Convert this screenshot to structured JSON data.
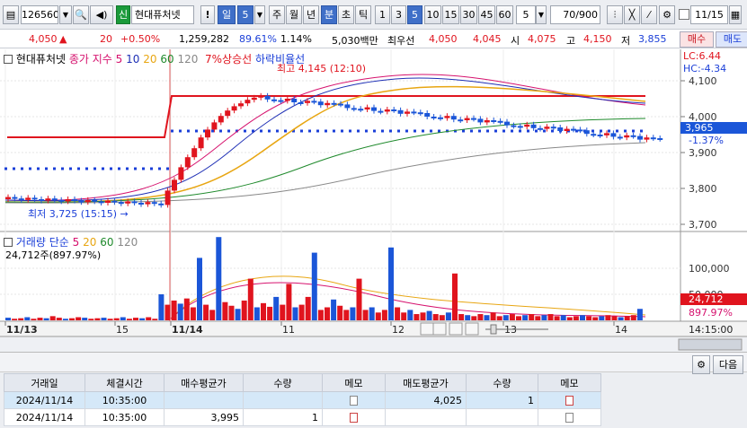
{
  "toolbar": {
    "stock_code": "126560",
    "stock_badge": "신",
    "stock_name": "현대퓨처넷",
    "alert_label": "!",
    "period_day": "일",
    "period_num": "5",
    "period_week": "주",
    "period_month": "월",
    "period_year": "년",
    "period_minute": "분",
    "period_second": "초",
    "period_tick": "틱",
    "intervals": [
      "1",
      "3",
      "5",
      "10",
      "15",
      "30",
      "45",
      "60"
    ],
    "interval_input": "5",
    "count": "70",
    "count_total": "/900",
    "date": "11/15"
  },
  "quote": {
    "price": "4,050",
    "arrow": "▲",
    "change": "20",
    "change_pct": "+0.50%",
    "volume": "1,259,282",
    "vol_ratio": "89.61%",
    "turnover": "1.14%",
    "amount": "5,030백만",
    "best_bid_label": "최우선",
    "best_ask": "4,050",
    "best_bid": "4,045",
    "open_label": "시",
    "open": "4,075",
    "high_label": "고",
    "high": "4,150",
    "low_label": "저",
    "low": "3,855",
    "buy_label": "매수",
    "sell_label": "매도"
  },
  "chart": {
    "stock_name": "현대퓨처넷",
    "legend_close": "종가 지수",
    "ma": [
      "5",
      "10",
      "20",
      "60",
      "120"
    ],
    "legend_up": "7%상승선",
    "legend_down": "하락비율선",
    "high_note": "최고 4,145 (12:10)",
    "low_note": "최저 3,725 (15:15)",
    "lc": "LC:6.44",
    "hc": "HC:-4.34",
    "price_ticks": [
      "4,100",
      "4,000",
      "3,900",
      "3,800",
      "3,700"
    ],
    "current_price": "3,965",
    "current_pct": "-1.37%",
    "vol_legend": "거래량 단순",
    "vol_ma": [
      "5",
      "20",
      "60",
      "120"
    ],
    "vol_value": "24,712주(897.97%)",
    "vol_ticks": [
      "100,000",
      "50,000"
    ],
    "vol_current": "24,712",
    "vol_pct": "897.97%",
    "x_labels": [
      "11/13",
      "15",
      "11/14",
      "11",
      "12",
      "13",
      "14"
    ],
    "time_label": "14:15:00",
    "colors": {
      "up": "#e0141e",
      "down": "#1b56d8",
      "ma5": "#d6126e",
      "ma10": "#1e2fb5",
      "ma20": "#e8a612",
      "ma60": "#1f8a2c",
      "ma120": "#888888"
    }
  },
  "bottom": {
    "next_label": "다음",
    "headers": [
      "거래일",
      "체결시간",
      "매수평균가",
      "수량",
      "메모",
      "매도평균가",
      "수량",
      "메모"
    ],
    "rows": [
      [
        "2024/11/14",
        "10:35:00",
        "",
        "",
        "",
        "4,025",
        "1",
        ""
      ],
      [
        "2024/11/14",
        "10:35:00",
        "3,995",
        "1",
        "",
        "",
        "",
        ""
      ]
    ]
  }
}
